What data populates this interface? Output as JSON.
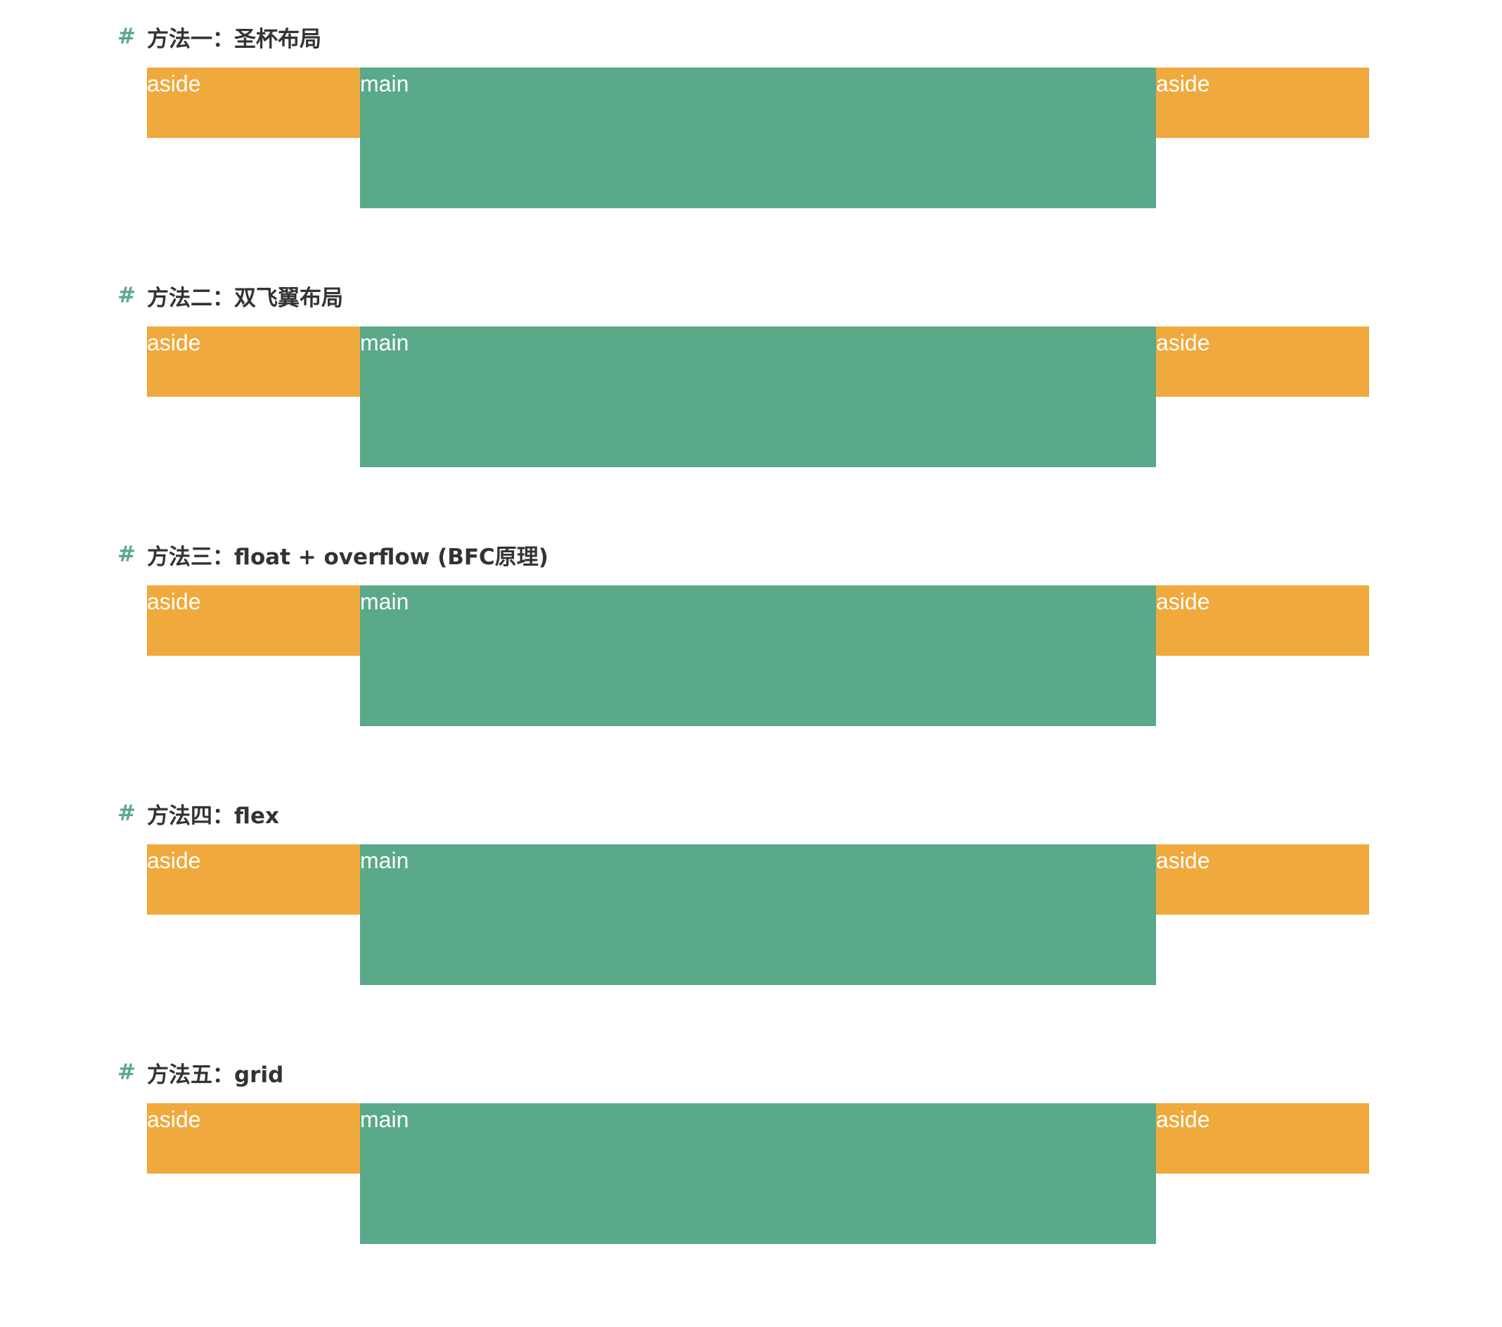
{
  "colors": {
    "aside": "#f0a93c",
    "main": "#5aa989",
    "hash": "#5aa989",
    "heading": "#333333"
  },
  "sections": [
    {
      "hash": "#",
      "title": "方法一：圣杯布局",
      "left": "aside",
      "main": "main",
      "right": "aside"
    },
    {
      "hash": "#",
      "title": "方法二：双飞翼布局",
      "left": "aside",
      "main": "main",
      "right": "aside"
    },
    {
      "hash": "#",
      "title": "方法三：float + overflow (BFC原理)",
      "left": "aside",
      "main": "main",
      "right": "aside"
    },
    {
      "hash": "#",
      "title": "方法四：flex",
      "left": "aside",
      "main": "main",
      "right": "aside"
    },
    {
      "hash": "#",
      "title": "方法五：grid",
      "left": "aside",
      "main": "main",
      "right": "aside"
    }
  ]
}
